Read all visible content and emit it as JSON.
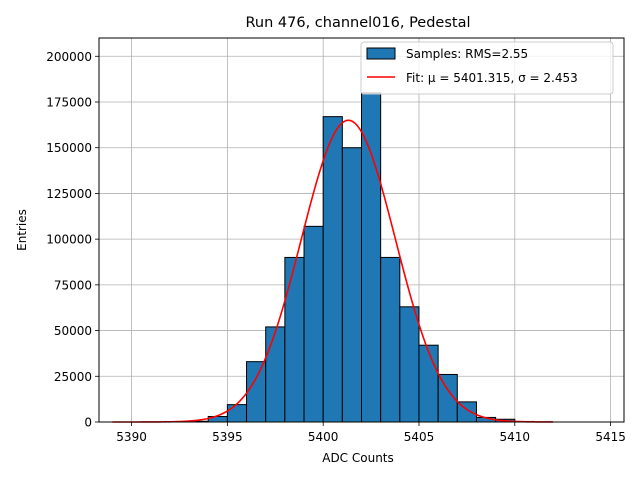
{
  "chart_data": {
    "type": "bar",
    "title": "Run 476, channel016, Pedestal",
    "xlabel": "ADC Counts",
    "ylabel": "Entries",
    "xlim": [
      5388.3,
      5415.7
    ],
    "ylim": [
      0,
      210000
    ],
    "xticks": [
      5390,
      5395,
      5400,
      5405,
      5410,
      5415
    ],
    "yticks": [
      0,
      25000,
      50000,
      75000,
      100000,
      125000,
      150000,
      175000,
      200000
    ],
    "grid": true,
    "legend_position": "top-right",
    "histogram": {
      "name": "Samples: RMS=2.55",
      "color": "#1f77b4",
      "edgecolor": "#000000",
      "bins": [
        {
          "x0": 5393,
          "x1": 5394,
          "value": 400
        },
        {
          "x0": 5394,
          "x1": 5395,
          "value": 3000
        },
        {
          "x0": 5395,
          "x1": 5396,
          "value": 9500
        },
        {
          "x0": 5396,
          "x1": 5397,
          "value": 33000
        },
        {
          "x0": 5397,
          "x1": 5398,
          "value": 52000
        },
        {
          "x0": 5398,
          "x1": 5399,
          "value": 90000
        },
        {
          "x0": 5399,
          "x1": 5400,
          "value": 107000
        },
        {
          "x0": 5400,
          "x1": 5401,
          "value": 167000
        },
        {
          "x0": 5401,
          "x1": 5402,
          "value": 150000
        },
        {
          "x0": 5402,
          "x1": 5403,
          "value": 180000
        },
        {
          "x0": 5403,
          "x1": 5404,
          "value": 90000
        },
        {
          "x0": 5404,
          "x1": 5405,
          "value": 63000
        },
        {
          "x0": 5405,
          "x1": 5406,
          "value": 42000
        },
        {
          "x0": 5406,
          "x1": 5407,
          "value": 26000
        },
        {
          "x0": 5407,
          "x1": 5408,
          "value": 11000
        },
        {
          "x0": 5408,
          "x1": 5409,
          "value": 2500
        },
        {
          "x0": 5409,
          "x1": 5410,
          "value": 1500
        },
        {
          "x0": 5410,
          "x1": 5411,
          "value": 300
        }
      ]
    },
    "fit": {
      "name": "Fit: μ = 5401.315, σ = 2.453",
      "color": "#ff0000",
      "mu": 5401.315,
      "sigma": 2.453,
      "amplitude": 165000,
      "x_range": [
        5389,
        5412
      ]
    }
  }
}
